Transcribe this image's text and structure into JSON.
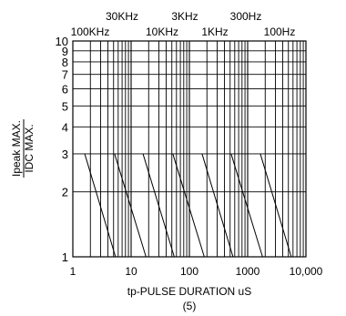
{
  "chart_data": {
    "type": "line",
    "title": "",
    "xlabel": "tp-PULSE DURATION uS",
    "ylabel_numerator": "Ipeak MAX.",
    "ylabel_denominator": "IDC MAX.",
    "footnote": "(5)",
    "x_scale": "log",
    "y_scale": "log",
    "xlim": [
      1,
      10000
    ],
    "ylim": [
      1,
      10
    ],
    "x_ticks": [
      "1",
      "10",
      "100",
      "1000",
      "10,000"
    ],
    "y_ticks": [
      "1",
      "2",
      "3",
      "4",
      "5",
      "6",
      "7",
      "8",
      "9",
      "10"
    ],
    "grid": true,
    "series": [
      {
        "name": "100KHz",
        "x": [
          1.6,
          5.4
        ],
        "y": [
          3,
          1
        ]
      },
      {
        "name": "30KHz",
        "x": [
          5.2,
          18
        ],
        "y": [
          3,
          1
        ]
      },
      {
        "name": "10KHz",
        "x": [
          16,
          55
        ],
        "y": [
          3,
          1
        ]
      },
      {
        "name": "3KHz",
        "x": [
          52,
          180
        ],
        "y": [
          3,
          1
        ]
      },
      {
        "name": "1KHz",
        "x": [
          165,
          560
        ],
        "y": [
          3,
          1
        ]
      },
      {
        "name": "300Hz",
        "x": [
          520,
          1800
        ],
        "y": [
          3,
          1
        ]
      },
      {
        "name": "100Hz",
        "x": [
          1650,
          5600
        ],
        "y": [
          3,
          1
        ]
      }
    ],
    "freq_labels_top_row": [
      "30KHz",
      "3KHz",
      "300Hz"
    ],
    "freq_labels_bottom_row": [
      "100KHz",
      "10KHz",
      "1KHz",
      "100Hz"
    ]
  }
}
